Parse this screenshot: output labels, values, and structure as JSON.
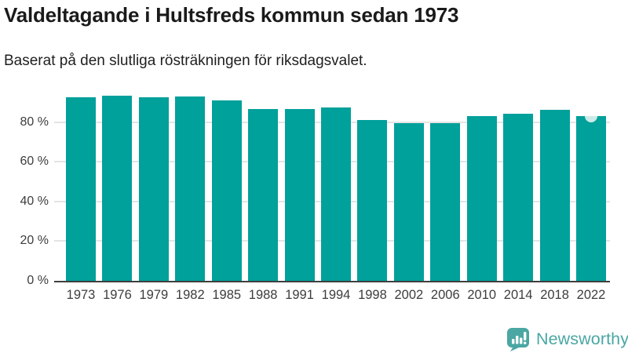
{
  "header": {
    "title": "Valdeltagande i Hultsfreds kommun sedan 1973",
    "subtitle": "Baserat på den slutliga rösträkningen för riksdagsvalet."
  },
  "chart_data": {
    "type": "bar",
    "title": "Valdeltagande i Hultsfreds kommun sedan 1973",
    "subtitle": "Baserat på den slutliga rösträkningen för riksdagsvalet.",
    "categories": [
      "1973",
      "1976",
      "1979",
      "1982",
      "1985",
      "1988",
      "1991",
      "1994",
      "1998",
      "2002",
      "2006",
      "2010",
      "2014",
      "2018",
      "2022"
    ],
    "values": [
      92.6,
      93.2,
      92.6,
      92.9,
      90.8,
      86.7,
      86.7,
      87.5,
      81.2,
      79.4,
      79.4,
      82.9,
      84.2,
      86.3,
      83.0
    ],
    "unit": "%",
    "xlabel": "",
    "ylabel": "",
    "ylim": [
      0,
      100
    ],
    "ytick_values": [
      0,
      20,
      40,
      60,
      80
    ],
    "ytick_labels": [
      "0 %",
      "20 %",
      "40 %",
      "60 %",
      "80 %"
    ],
    "grid": "horizontal-light-behind-bars",
    "legend": "none",
    "bar_color": "#00a09b",
    "axis_color": "#3f3f3f",
    "gridline_color": "#e4e4e4",
    "highlight": {
      "category": "2022",
      "marker": "top-notch-semicircle",
      "color": "#cdeae8"
    }
  },
  "branding": {
    "logo_text": "Newsworthy",
    "logo_color": "#4aa7a3",
    "logo_icon": "speech-bubble-bar-chart-exclamation"
  }
}
